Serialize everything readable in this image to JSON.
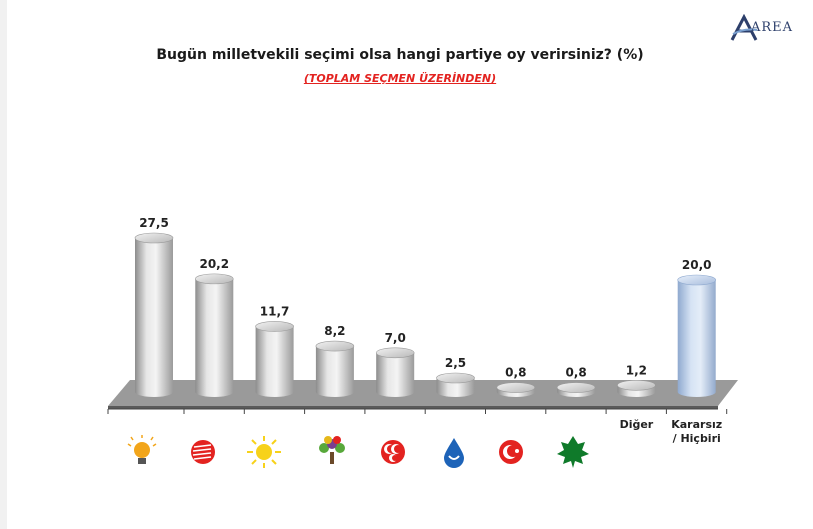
{
  "header": {
    "title": "Bugün milletvekili seçimi olsa hangi partiye oy verirsiniz? (%)",
    "subtitle": "(TOPLAM SEÇMEN ÜZERİNDEN)",
    "logo_text": "AREA"
  },
  "chart_data": {
    "type": "bar",
    "title": "Bugün milletvekili seçimi olsa hangi partiye oy verirsiniz? (%)",
    "subtitle": "(TOPLAM SEÇMEN ÜZERİNDEN)",
    "categories": [
      "",
      "",
      "",
      "",
      "",
      "",
      "",
      "",
      "Diğer",
      "Kararsız / Hiçbiri"
    ],
    "category_icons": [
      "lightbulb-icon",
      "arrows-circle-icon",
      "sun-icon",
      "tree-icon",
      "crescents-icon",
      "water-drop-icon",
      "crescent-star-icon",
      "plane-leaf-icon",
      "",
      ""
    ],
    "values": [
      27.5,
      20.2,
      11.7,
      8.2,
      7.0,
      2.5,
      0.8,
      0.8,
      1.2,
      20.0
    ],
    "value_labels": [
      "27,5",
      "20,2",
      "11,7",
      "8,2",
      "7,0",
      "2,5",
      "0,8",
      "0,8",
      "1,2",
      "20,0"
    ],
    "ylim": [
      0,
      30
    ],
    "grid": false,
    "legend": "none",
    "bar_style": "3d-cylinder",
    "colors": {
      "bar": "#c9c9c9",
      "highlight_bar": "#b9cde8",
      "floor": "#8a8a8a",
      "title_red": "#e32320"
    }
  }
}
